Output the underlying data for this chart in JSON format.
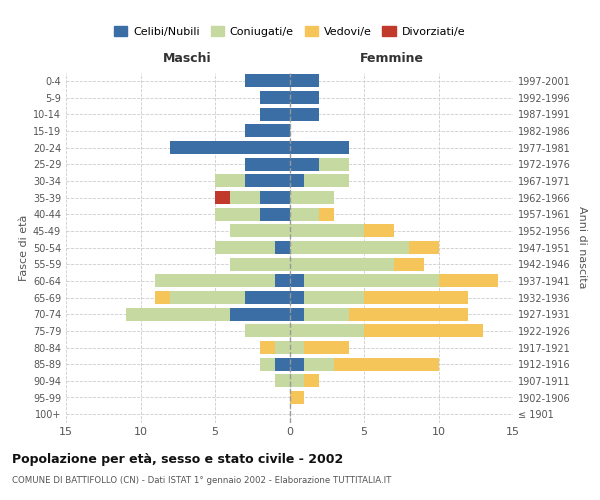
{
  "age_groups": [
    "100+",
    "95-99",
    "90-94",
    "85-89",
    "80-84",
    "75-79",
    "70-74",
    "65-69",
    "60-64",
    "55-59",
    "50-54",
    "45-49",
    "40-44",
    "35-39",
    "30-34",
    "25-29",
    "20-24",
    "15-19",
    "10-14",
    "5-9",
    "0-4"
  ],
  "birth_years": [
    "≤ 1901",
    "1902-1906",
    "1907-1911",
    "1912-1916",
    "1917-1921",
    "1922-1926",
    "1927-1931",
    "1932-1936",
    "1937-1941",
    "1942-1946",
    "1947-1951",
    "1952-1956",
    "1957-1961",
    "1962-1966",
    "1967-1971",
    "1972-1976",
    "1977-1981",
    "1982-1986",
    "1987-1991",
    "1992-1996",
    "1997-2001"
  ],
  "male": {
    "celibi": [
      0,
      0,
      0,
      1,
      0,
      0,
      4,
      3,
      1,
      0,
      1,
      0,
      2,
      2,
      3,
      3,
      8,
      3,
      2,
      2,
      3
    ],
    "coniugati": [
      0,
      0,
      1,
      1,
      1,
      3,
      7,
      5,
      8,
      4,
      4,
      4,
      3,
      2,
      2,
      0,
      0,
      0,
      0,
      0,
      0
    ],
    "vedovi": [
      0,
      0,
      0,
      0,
      1,
      0,
      0,
      1,
      0,
      0,
      0,
      0,
      0,
      0,
      0,
      0,
      0,
      0,
      0,
      0,
      0
    ],
    "divorziati": [
      0,
      0,
      0,
      0,
      0,
      0,
      0,
      0,
      0,
      0,
      0,
      0,
      0,
      1,
      0,
      0,
      0,
      0,
      0,
      0,
      0
    ]
  },
  "female": {
    "nubili": [
      0,
      0,
      0,
      1,
      0,
      0,
      1,
      1,
      1,
      0,
      0,
      0,
      0,
      0,
      1,
      2,
      4,
      0,
      2,
      2,
      2
    ],
    "coniugate": [
      0,
      0,
      1,
      2,
      1,
      5,
      3,
      4,
      9,
      7,
      8,
      5,
      2,
      3,
      3,
      2,
      0,
      0,
      0,
      0,
      0
    ],
    "vedove": [
      0,
      1,
      1,
      7,
      3,
      8,
      8,
      7,
      4,
      2,
      2,
      2,
      1,
      0,
      0,
      0,
      0,
      0,
      0,
      0,
      0
    ],
    "divorziate": [
      0,
      0,
      0,
      0,
      0,
      0,
      0,
      0,
      0,
      0,
      0,
      0,
      0,
      0,
      0,
      0,
      0,
      0,
      0,
      0,
      0
    ]
  },
  "colors": {
    "celibi_nubili": "#3A6EA5",
    "coniugati": "#C5D9A0",
    "vedovi": "#F5C55A",
    "divorziati": "#C0392B"
  },
  "xlim": 15,
  "title": "Popolazione per età, sesso e stato civile - 2002",
  "subtitle": "COMUNE DI BATTIFOLLO (CN) - Dati ISTAT 1° gennaio 2002 - Elaborazione TUTTITALIA.IT",
  "ylabel_left": "Fasce di età",
  "ylabel_right": "Anni di nascita",
  "xlabel_left": "Maschi",
  "xlabel_right": "Femmine",
  "bg_color": "#FFFFFF",
  "grid_color": "#CCCCCC"
}
